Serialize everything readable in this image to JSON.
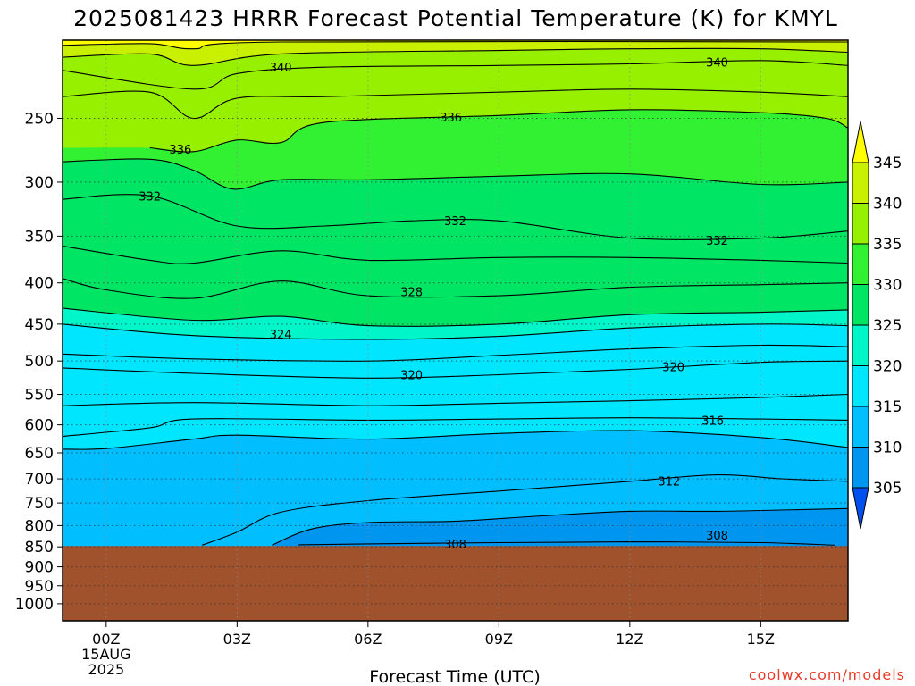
{
  "chart_data": {
    "type": "contour",
    "title": "2025081423 HRRR Forecast Potential Temperature (K) for KMYL",
    "xlabel": "Forecast Time (UTC)",
    "ylabel": "",
    "y_scale": "log-pressure",
    "y_range_hpa": [
      1050,
      200
    ],
    "y_ticks": [
      250,
      300,
      350,
      400,
      450,
      500,
      550,
      600,
      650,
      700,
      750,
      800,
      850,
      900,
      950,
      1000
    ],
    "x_range_hours": [
      -1,
      17
    ],
    "x_ticks": [
      {
        "hour": 0,
        "label": "00Z",
        "sub1": "15AUG",
        "sub2": "2025"
      },
      {
        "hour": 3,
        "label": "03Z"
      },
      {
        "hour": 6,
        "label": "06Z"
      },
      {
        "hour": 9,
        "label": "09Z"
      },
      {
        "hour": 12,
        "label": "12Z"
      },
      {
        "hour": 15,
        "label": "15Z"
      }
    ],
    "grid": "dotted",
    "surface_pressure_hpa": 848,
    "surface_fill_color": "#a0522d",
    "colorbar": {
      "levels": [
        305,
        310,
        315,
        320,
        325,
        330,
        335,
        340,
        345
      ],
      "colors": [
        "#0050f0",
        "#0096f0",
        "#00beff",
        "#00e6ff",
        "#00f5c8",
        "#00e664",
        "#32f032",
        "#96f000",
        "#c8f000",
        "#ffff00"
      ],
      "extend": "both"
    },
    "filled_contours": [
      {
        "lower": 305,
        "upper": 310,
        "color": "#0096f0",
        "region_note": "below the 310 isentrope"
      },
      {
        "lower": 310,
        "upper": 315,
        "color": "#00beff"
      },
      {
        "lower": 315,
        "upper": 320,
        "color": "#00e6ff"
      },
      {
        "lower": 320,
        "upper": 325,
        "color": "#00f5c8"
      },
      {
        "lower": 325,
        "upper": 330,
        "color": "#00e664"
      },
      {
        "lower": 330,
        "upper": 335,
        "color": "#32f032"
      },
      {
        "lower": 335,
        "upper": 340,
        "color": "#96f000"
      },
      {
        "lower": 340,
        "upper": 345,
        "color": "#c8f000"
      },
      {
        "lower": 345,
        "upper": 350,
        "color": "#ffff00"
      }
    ],
    "isentropes": [
      {
        "theta": 308,
        "points": [
          [
            4.4,
            845
          ],
          [
            6,
            843
          ],
          [
            9,
            840
          ],
          [
            12,
            838
          ],
          [
            15,
            840
          ],
          [
            16.7,
            846
          ]
        ]
      },
      {
        "theta": 310,
        "points": [
          [
            3.8,
            846
          ],
          [
            4.7,
            808
          ],
          [
            6,
            793
          ],
          [
            8,
            790
          ],
          [
            10,
            778
          ],
          [
            12,
            768
          ],
          [
            14,
            768
          ],
          [
            16,
            764
          ],
          [
            17,
            762
          ]
        ]
      },
      {
        "theta": 312,
        "points": [
          [
            2.2,
            846
          ],
          [
            3,
            815
          ],
          [
            4,
            770
          ],
          [
            6,
            745
          ],
          [
            9,
            725
          ],
          [
            12,
            705
          ],
          [
            14,
            692
          ],
          [
            15.5,
            700
          ],
          [
            17,
            705
          ]
        ]
      },
      {
        "theta": 314,
        "points": [
          [
            -1,
            643
          ],
          [
            0,
            642
          ],
          [
            2,
            625
          ],
          [
            3,
            618
          ],
          [
            6,
            625
          ],
          [
            9,
            615
          ],
          [
            12,
            610
          ],
          [
            15,
            622
          ],
          [
            17,
            640
          ]
        ]
      },
      {
        "theta": 316,
        "points": [
          [
            -1,
            620
          ],
          [
            1,
            605
          ],
          [
            2,
            590
          ],
          [
            6,
            592
          ],
          [
            9,
            590
          ],
          [
            12,
            588
          ],
          [
            15,
            590
          ],
          [
            17,
            592
          ]
        ]
      },
      {
        "theta": 318,
        "points": [
          [
            -1,
            568
          ],
          [
            2,
            563
          ],
          [
            6,
            568
          ],
          [
            9,
            564
          ],
          [
            12,
            560
          ],
          [
            15,
            555
          ],
          [
            17,
            550
          ]
        ]
      },
      {
        "theta": 320,
        "points": [
          [
            -1,
            510
          ],
          [
            2,
            518
          ],
          [
            6,
            525
          ],
          [
            9,
            520
          ],
          [
            12,
            512
          ],
          [
            15,
            502
          ],
          [
            17,
            500
          ]
        ]
      },
      {
        "theta": 322,
        "points": [
          [
            -1,
            490
          ],
          [
            2,
            497
          ],
          [
            6,
            500
          ],
          [
            9,
            492
          ],
          [
            12,
            483
          ],
          [
            15,
            478
          ],
          [
            17,
            480
          ]
        ]
      },
      {
        "theta": 324,
        "points": [
          [
            -1,
            450
          ],
          [
            2,
            465
          ],
          [
            6,
            470
          ],
          [
            9,
            466
          ],
          [
            12,
            455
          ],
          [
            15,
            450
          ],
          [
            17,
            452
          ]
        ]
      },
      {
        "theta": 326,
        "points": [
          [
            -1,
            430
          ],
          [
            2,
            445
          ],
          [
            4,
            440
          ],
          [
            6,
            452
          ],
          [
            9,
            450
          ],
          [
            12,
            438
          ],
          [
            15,
            435
          ],
          [
            17,
            432
          ]
        ]
      },
      {
        "theta": 328,
        "points": [
          [
            -1,
            395
          ],
          [
            0,
            408
          ],
          [
            2,
            418
          ],
          [
            4,
            398
          ],
          [
            6,
            415
          ],
          [
            9,
            415
          ],
          [
            12,
            405
          ],
          [
            15,
            402
          ],
          [
            17,
            400
          ]
        ]
      },
      {
        "theta": 330,
        "points": [
          [
            -1,
            360
          ],
          [
            1,
            375
          ],
          [
            2,
            378
          ],
          [
            4,
            365
          ],
          [
            6,
            375
          ],
          [
            9,
            372
          ],
          [
            12,
            372
          ],
          [
            15,
            375
          ],
          [
            17,
            378
          ]
        ]
      },
      {
        "theta": 332,
        "points": [
          [
            -1,
            315
          ],
          [
            1,
            312
          ],
          [
            3,
            340
          ],
          [
            5,
            340
          ],
          [
            7,
            335
          ],
          [
            9,
            335
          ],
          [
            12,
            352
          ],
          [
            15,
            352
          ],
          [
            17,
            345
          ]
        ]
      },
      {
        "theta": 334,
        "points": [
          [
            -1,
            283
          ],
          [
            1,
            281
          ],
          [
            2,
            290
          ],
          [
            2.9,
            306
          ],
          [
            4,
            298
          ],
          [
            6,
            298
          ],
          [
            9,
            295
          ],
          [
            12,
            293
          ],
          [
            15,
            302
          ],
          [
            17,
            300
          ]
        ]
      },
      {
        "theta": 336,
        "points": [
          [
            1,
            272
          ],
          [
            2,
            275
          ],
          [
            3,
            266
          ],
          [
            4,
            268
          ],
          [
            5,
            253
          ],
          [
            9,
            248
          ],
          [
            12,
            244
          ],
          [
            15,
            246
          ],
          [
            16.5,
            250
          ],
          [
            17,
            257
          ]
        ]
      },
      {
        "theta": 338,
        "points": [
          [
            -1,
            235
          ],
          [
            1,
            232
          ],
          [
            2,
            250
          ],
          [
            3,
            236
          ],
          [
            5,
            235
          ],
          [
            9,
            232
          ],
          [
            12,
            230
          ],
          [
            15,
            232
          ],
          [
            17,
            235
          ]
        ]
      },
      {
        "theta": 340,
        "points": [
          [
            -1,
            218
          ],
          [
            2,
            230
          ],
          [
            3,
            220
          ],
          [
            5,
            216
          ],
          [
            9,
            215
          ],
          [
            12,
            214
          ],
          [
            15,
            212
          ],
          [
            17,
            215
          ]
        ]
      },
      {
        "theta": 342,
        "points": [
          [
            -1,
            210
          ],
          [
            1,
            208
          ],
          [
            2,
            215
          ],
          [
            4,
            208
          ],
          [
            9,
            206
          ],
          [
            12,
            205
          ],
          [
            15,
            205
          ],
          [
            17,
            207
          ]
        ]
      },
      {
        "theta": 344,
        "points": [
          [
            -1,
            203
          ],
          [
            1,
            202
          ],
          [
            2,
            205
          ],
          [
            4,
            201
          ],
          [
            17,
            201
          ]
        ]
      }
    ],
    "contour_labels": [
      {
        "text": "340",
        "hour": 4.0,
        "p": 216
      },
      {
        "text": "340",
        "hour": 14.0,
        "p": 213
      },
      {
        "text": "336",
        "hour": 7.9,
        "p": 249
      },
      {
        "text": "336",
        "hour": 1.7,
        "p": 273
      },
      {
        "text": "332",
        "hour": 1.0,
        "p": 312
      },
      {
        "text": "332",
        "hour": 8.0,
        "p": 335
      },
      {
        "text": "332",
        "hour": 14.0,
        "p": 354
      },
      {
        "text": "328",
        "hour": 7.0,
        "p": 410
      },
      {
        "text": "324",
        "hour": 4.0,
        "p": 463
      },
      {
        "text": "320",
        "hour": 7.0,
        "p": 520
      },
      {
        "text": "320",
        "hour": 13.0,
        "p": 508
      },
      {
        "text": "316",
        "hour": 13.9,
        "p": 592
      },
      {
        "text": "312",
        "hour": 12.9,
        "p": 704
      },
      {
        "text": "308",
        "hour": 8.0,
        "p": 843
      },
      {
        "text": "308",
        "hour": 14.0,
        "p": 822
      }
    ]
  },
  "credit": "coolwx.com/models"
}
